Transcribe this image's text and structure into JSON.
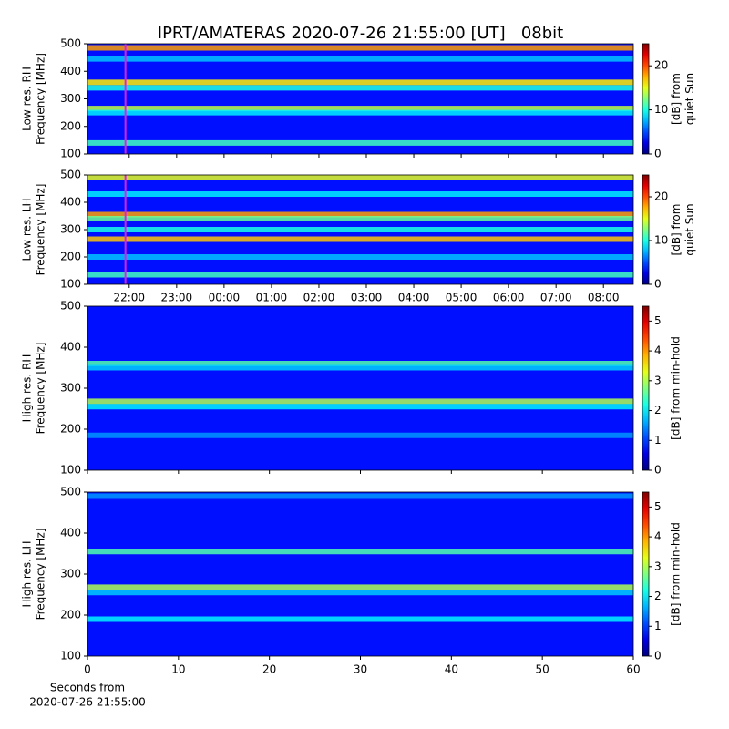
{
  "chart_data": [
    {
      "type": "heatmap",
      "title": "IPRT/AMATERAS 2020-07-26 21:55:00 [UT]   08bit",
      "ylabel": [
        "Low res. RH",
        "Frequency [MHz]"
      ],
      "ylim": [
        100,
        500
      ],
      "yticks": [
        100,
        200,
        300,
        400,
        500
      ],
      "xlim": [
        21.12,
        32.63
      ],
      "xticks": [
        {
          "value": 22,
          "label": "22:00"
        },
        {
          "value": 23,
          "label": "23:00"
        },
        {
          "value": 24,
          "label": "00:00"
        },
        {
          "value": 25,
          "label": "01:00"
        },
        {
          "value": 26,
          "label": "02:00"
        },
        {
          "value": 27,
          "label": "03:00"
        },
        {
          "value": 28,
          "label": "04:00"
        },
        {
          "value": 29,
          "label": "05:00"
        },
        {
          "value": 30,
          "label": "06:00"
        },
        {
          "value": 31,
          "label": "07:00"
        },
        {
          "value": 32,
          "label": "08:00"
        }
      ],
      "xtick_labels": false,
      "marker": 21.92,
      "marker_color": "#e020e0",
      "colorbar": {
        "label": [
          "[dB] from",
          "quiet Sun"
        ],
        "lim": [
          0,
          25
        ],
        "ticks": [
          0,
          10,
          20
        ]
      },
      "bands": [
        {
          "y": 485,
          "value": 18
        },
        {
          "y": 445,
          "value": 8
        },
        {
          "y": 360,
          "value": 16
        },
        {
          "y": 340,
          "value": 10
        },
        {
          "y": 265,
          "value": 14
        },
        {
          "y": 250,
          "value": 9
        },
        {
          "y": 140,
          "value": 11
        }
      ]
    },
    {
      "type": "heatmap",
      "ylabel": [
        "Low res. LH",
        "Frequency [MHz]"
      ],
      "ylim": [
        100,
        500
      ],
      "yticks": [
        100,
        200,
        300,
        400,
        500
      ],
      "xlim": [
        21.12,
        32.63
      ],
      "xticks": [
        {
          "value": 22,
          "label": "22:00"
        },
        {
          "value": 23,
          "label": "23:00"
        },
        {
          "value": 24,
          "label": "00:00"
        },
        {
          "value": 25,
          "label": "01:00"
        },
        {
          "value": 26,
          "label": "02:00"
        },
        {
          "value": 27,
          "label": "03:00"
        },
        {
          "value": 28,
          "label": "04:00"
        },
        {
          "value": 29,
          "label": "05:00"
        },
        {
          "value": 30,
          "label": "06:00"
        },
        {
          "value": 31,
          "label": "07:00"
        },
        {
          "value": 32,
          "label": "08:00"
        }
      ],
      "xtick_labels": true,
      "marker": 21.92,
      "marker_color": "#e020e0",
      "colorbar": {
        "label": [
          "[dB] from",
          "quiet Sun"
        ],
        "lim": [
          0,
          25
        ],
        "ticks": [
          0,
          10,
          20
        ]
      },
      "bands": [
        {
          "y": 490,
          "value": 15
        },
        {
          "y": 430,
          "value": 9
        },
        {
          "y": 355,
          "value": 18
        },
        {
          "y": 340,
          "value": 12
        },
        {
          "y": 300,
          "value": 10
        },
        {
          "y": 265,
          "value": 17
        },
        {
          "y": 200,
          "value": 8
        },
        {
          "y": 135,
          "value": 11
        }
      ]
    },
    {
      "type": "heatmap",
      "ylabel": [
        "High res. RH",
        "Frequency [MHz]"
      ],
      "ylim": [
        100,
        500
      ],
      "yticks": [
        100,
        200,
        300,
        400,
        500
      ],
      "xlim": [
        0,
        60
      ],
      "xticks": [
        0,
        10,
        20,
        30,
        40,
        50,
        60
      ],
      "xtick_labels": false,
      "colorbar": {
        "label": [
          "[dB] from min-hold"
        ],
        "lim": [
          0,
          5.5
        ],
        "ticks": [
          0,
          1,
          2,
          3,
          4,
          5
        ]
      },
      "bands": [
        {
          "y": 360,
          "value": 2.5
        },
        {
          "y": 350,
          "value": 1.8
        },
        {
          "y": 268,
          "value": 3
        },
        {
          "y": 255,
          "value": 2
        },
        {
          "y": 185,
          "value": 1.5
        }
      ]
    },
    {
      "type": "heatmap",
      "ylabel": [
        "High res. LH",
        "Frequency [MHz]"
      ],
      "ylim": [
        100,
        500
      ],
      "yticks": [
        100,
        200,
        300,
        400,
        500
      ],
      "xlim": [
        0,
        60
      ],
      "xticks": [
        0,
        10,
        20,
        30,
        40,
        50,
        60
      ],
      "xtick_labels": true,
      "xlabel": [
        "Seconds from",
        "2020-07-26 21:55:00"
      ],
      "colorbar": {
        "label": [
          "[dB] from min-hold"
        ],
        "lim": [
          0,
          5.5
        ],
        "ticks": [
          0,
          1,
          2,
          3,
          4,
          5
        ]
      },
      "bands": [
        {
          "y": 490,
          "value": 1.5
        },
        {
          "y": 355,
          "value": 2.5
        },
        {
          "y": 268,
          "value": 3
        },
        {
          "y": 255,
          "value": 1.8
        },
        {
          "y": 190,
          "value": 2
        }
      ]
    }
  ]
}
